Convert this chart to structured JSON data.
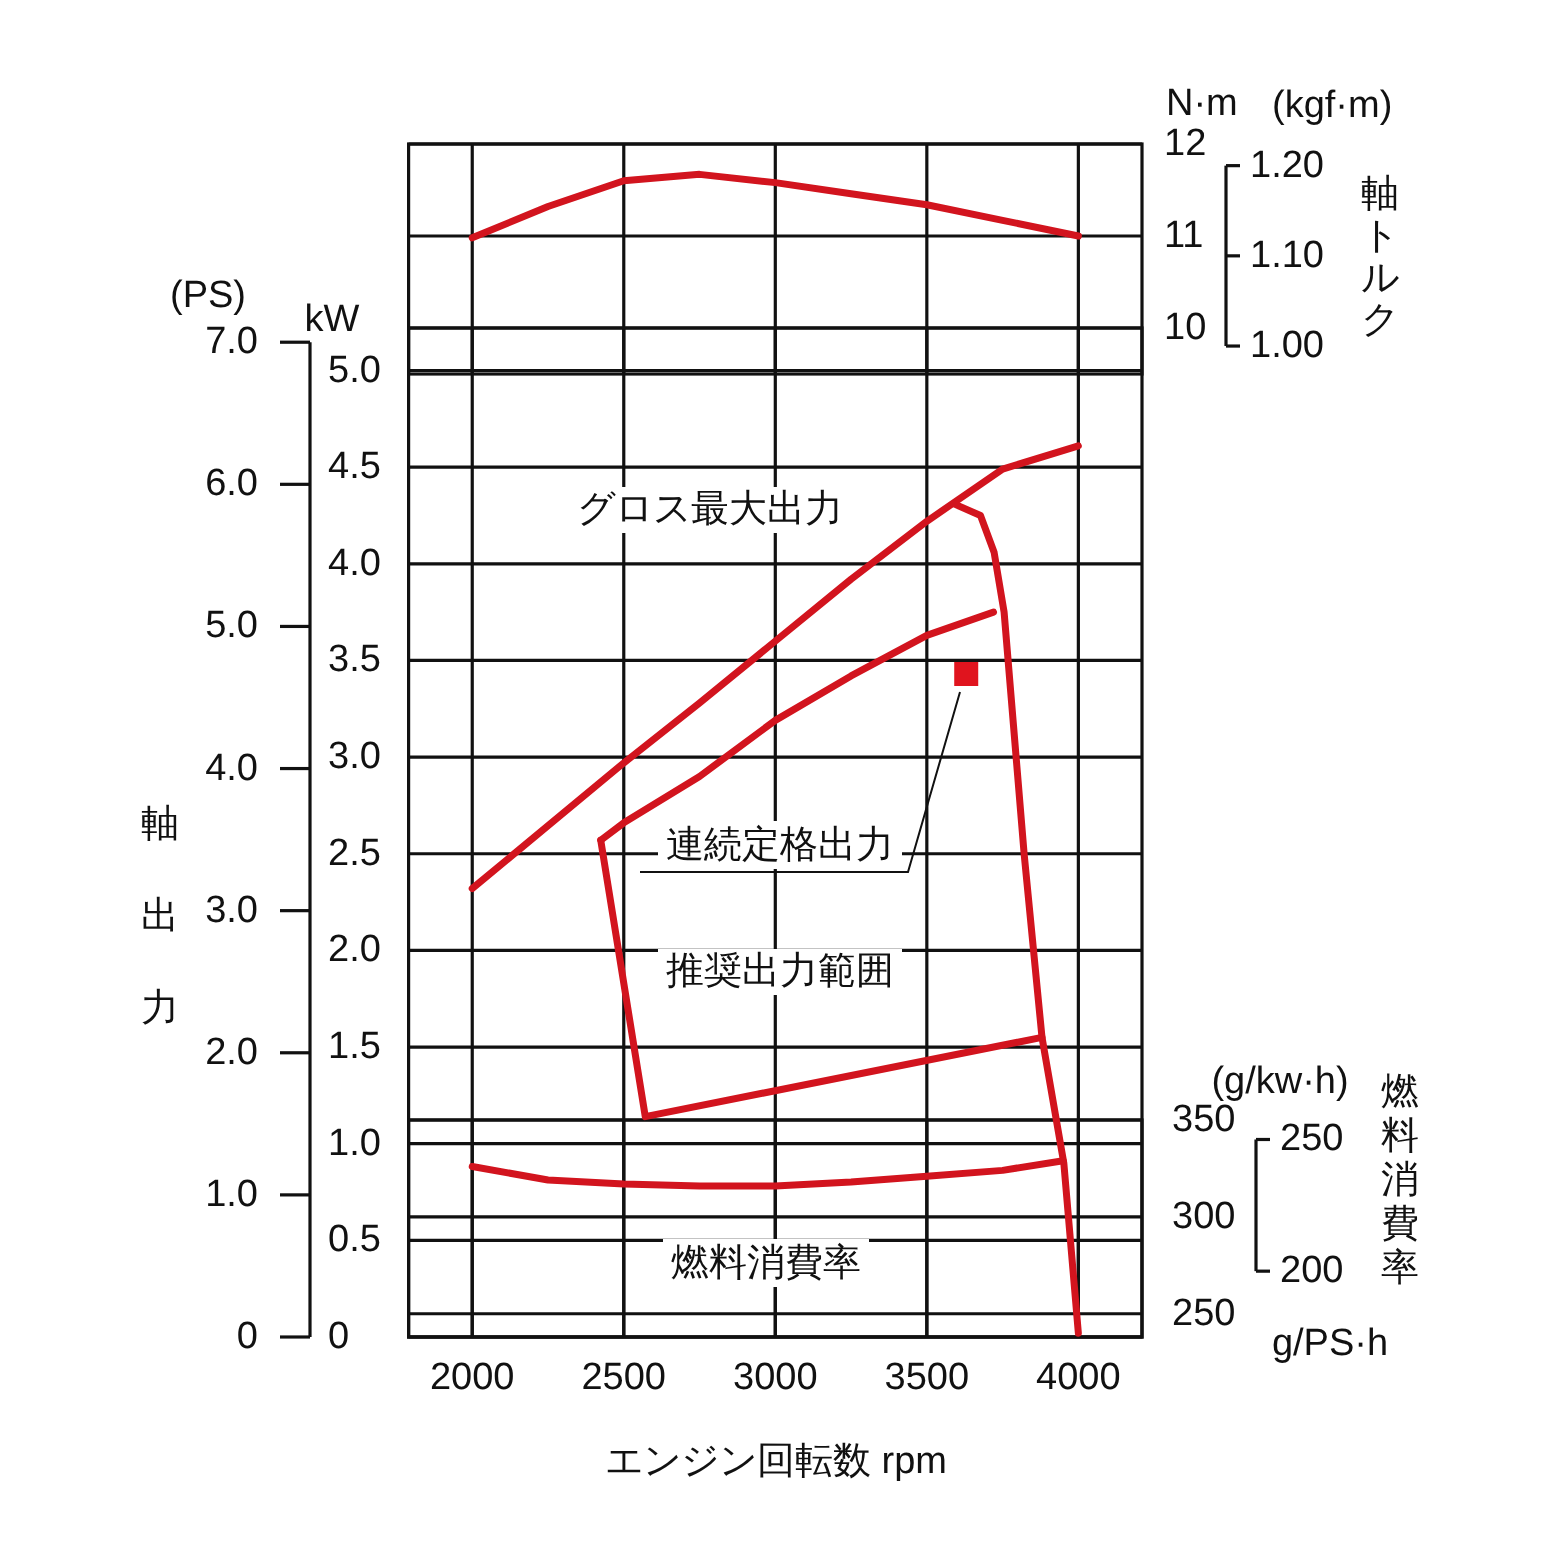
{
  "chart_data": [
    {
      "type": "line",
      "xlim": [
        1790,
        4210
      ],
      "xticks": [
        2000,
        2500,
        3000,
        3500,
        4000
      ],
      "ylim": [
        9.5,
        12
      ],
      "yticks": [
        10,
        11,
        12
      ],
      "y2lim": [
        0.969,
        1.224
      ],
      "y2ticks": [
        {
          "value": 1,
          "label": "1.00"
        },
        {
          "value": 1.1,
          "label": "1.10"
        },
        {
          "value": 1.2,
          "label": "1.20"
        }
      ],
      "y2label": "軸トルク",
      "annotations": [
        "N·m",
        "(kgf·m)"
      ],
      "grid": true,
      "tick_labels": "y",
      "marker": "none",
      "series": [
        {
          "color": "#d2141e",
          "x": [
            2000,
            2250,
            2500,
            2750,
            3000,
            3250,
            3500,
            3750,
            4000
          ],
          "values": [
            10.98,
            11.32,
            11.6,
            11.67,
            11.58,
            11.46,
            11.34,
            11.17,
            11.0
          ]
        }
      ]
    },
    {
      "type": "line",
      "xlim": [
        1790,
        4210
      ],
      "xticks": [
        2000,
        2500,
        3000,
        3500,
        4000
      ],
      "ylim": [
        0,
        5.22
      ],
      "yticks": [
        0,
        0.5,
        {
          "value": 1,
          "label": "1.0"
        },
        1.5,
        {
          "value": 2,
          "label": "2.0"
        },
        2.5,
        {
          "value": 3,
          "label": "3.0"
        },
        3.5,
        {
          "value": 4,
          "label": "4.0"
        },
        4.5,
        {
          "value": 5,
          "label": "5.0"
        }
      ],
      "y2lim": [
        0,
        7.1
      ],
      "y2ticks": [
        0,
        {
          "value": 1,
          "label": "1.0"
        },
        {
          "value": 2,
          "label": "2.0"
        },
        {
          "value": 3,
          "label": "3.0"
        },
        {
          "value": 4,
          "label": "4.0"
        },
        {
          "value": 5,
          "label": "5.0"
        },
        {
          "value": 6,
          "label": "6.0"
        },
        {
          "value": 7,
          "label": "7.0"
        }
      ],
      "ylabel": "軸出力",
      "annotations": [
        "(PS)",
        "kW",
        "連続定格出力"
      ],
      "grid": true,
      "tick_labels": "y",
      "marker": "none",
      "series": [
        {
          "name": "グロス最大出力",
          "color": "#d2141e",
          "x": [
            2000,
            2500,
            2750,
            3000,
            3250,
            3500,
            3750,
            4000
          ],
          "values": [
            2.32,
            2.97,
            3.28,
            3.6,
            3.92,
            4.22,
            4.49,
            4.61
          ]
        },
        {
          "color": "#d2141e",
          "x": [
            2424,
            2500,
            2750,
            3000,
            3250,
            3500,
            3720
          ],
          "values": [
            2.57,
            2.66,
            2.9,
            3.19,
            3.42,
            3.63,
            3.75
          ]
        },
        {
          "name": "推奨出力範囲",
          "color": "#d2141e",
          "x": [
            2424,
            2571,
            3880
          ],
          "values": [
            2.57,
            1.14,
            1.55
          ]
        },
        {
          "color": "#d2141e",
          "x": [
            3590,
            3677,
            3722,
            3755,
            3821,
            3880,
            3952,
            4000
          ],
          "values": [
            4.31,
            4.25,
            4.06,
            3.75,
            2.5,
            1.55,
            0.9,
            0.02
          ]
        },
        {
          "type": "scatter",
          "marker": "square",
          "color": "#e0141e",
          "x": [
            3630
          ],
          "values": [
            3.43
          ]
        }
      ]
    },
    {
      "type": "line",
      "xlim": [
        1790,
        4210
      ],
      "xticks": [
        2000,
        2500,
        3000,
        3500,
        4000
      ],
      "ylim": [
        238,
        350
      ],
      "yticks": [
        250,
        300,
        350
      ],
      "y2lim": [
        175,
        257.4
      ],
      "y2ticks": [
        200,
        250
      ],
      "xlabel": "エンジン回転数 rpm",
      "y2label": "燃料消費率",
      "annotations": [
        "(g/kw·h)",
        "g/PS·h"
      ],
      "grid": true,
      "marker": "none",
      "series": [
        {
          "name": "燃料消費率",
          "color": "#d2141e",
          "x": [
            2000,
            2250,
            2500,
            2750,
            3000,
            3250,
            3500,
            3750,
            3950
          ],
          "values": [
            326,
            319,
            317,
            316,
            316,
            318,
            321,
            324,
            329
          ]
        }
      ]
    }
  ]
}
